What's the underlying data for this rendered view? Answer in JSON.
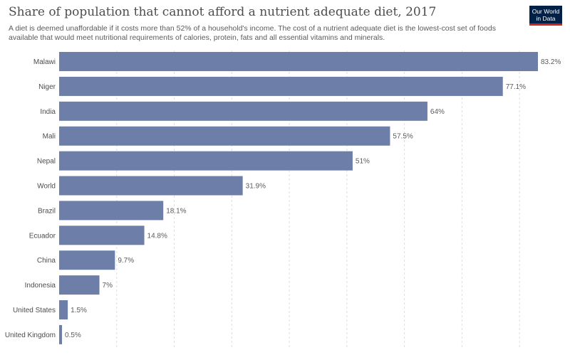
{
  "title": "Share of population that cannot afford a nutrient adequate diet, 2017",
  "subtitle": "A diet is deemed unaffordable if it costs more than 52% of a household's income. The cost of a nutrient adequate diet is the lowest-cost set of foods available that would meet nutritional requirements of calories, protein, fats and all essential vitamins and minerals.",
  "logo": {
    "line1": "Our World",
    "line2": "in Data"
  },
  "colors": {
    "bar": "#6d7fa8",
    "grid": "#dddddd",
    "logo_bg": "#002147",
    "logo_accent": "#ce261e"
  },
  "chart_data": {
    "type": "bar",
    "orientation": "horizontal",
    "categories": [
      "Malawi",
      "Niger",
      "India",
      "Mali",
      "Nepal",
      "World",
      "Brazil",
      "Ecuador",
      "China",
      "Indonesia",
      "United States",
      "United Kingdom"
    ],
    "values": [
      83.2,
      77.1,
      64,
      57.5,
      51,
      31.9,
      18.1,
      14.8,
      9.7,
      7,
      1.5,
      0.5
    ],
    "value_labels": [
      "83.2%",
      "77.1%",
      "64%",
      "57.5%",
      "51%",
      "31.9%",
      "18.1%",
      "14.8%",
      "9.7%",
      "7%",
      "1.5%",
      "0.5%"
    ],
    "xlim": [
      0,
      83.2
    ],
    "grid": true
  }
}
